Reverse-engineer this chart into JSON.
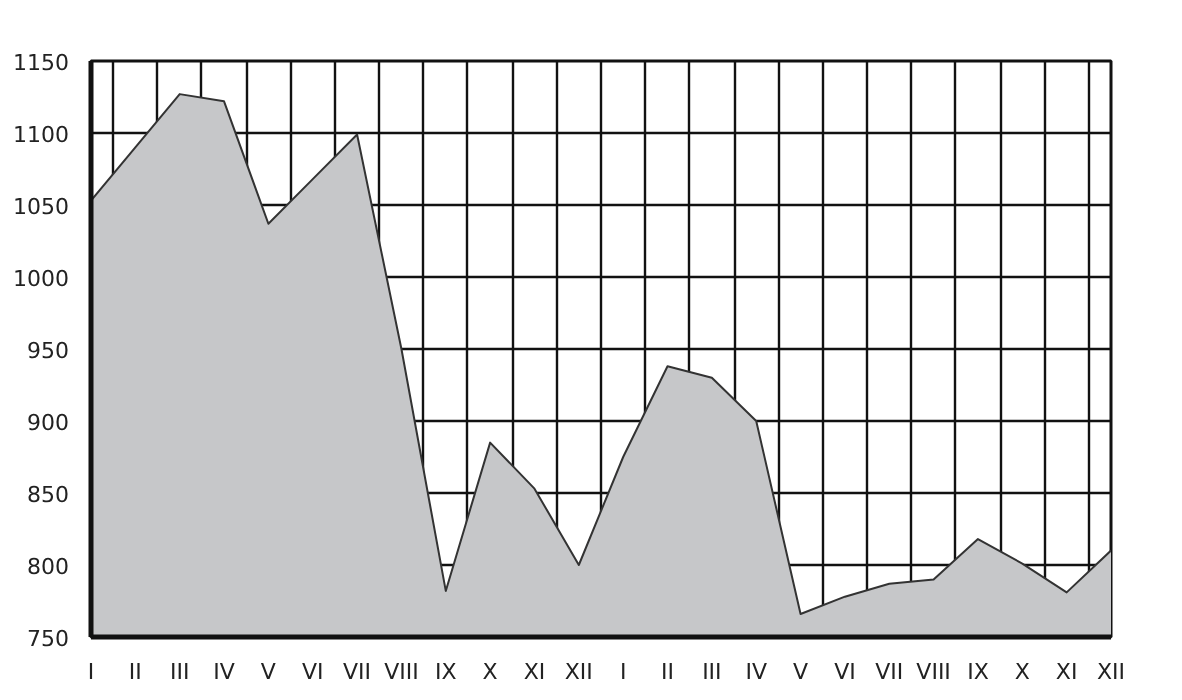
{
  "chart_data": {
    "type": "area",
    "categories": [
      "I",
      "II",
      "III",
      "IV",
      "V",
      "VI",
      "VII",
      "VIII",
      "IX",
      "X",
      "XI",
      "XII",
      "I",
      "II",
      "III",
      "IV",
      "V",
      "VI",
      "VII",
      "VIII",
      "IX",
      "X",
      "XI",
      "XII"
    ],
    "series": [
      {
        "color": "#c6c7c9",
        "values": [
          1053,
          1090,
          1127,
          1122,
          1037,
          1068,
          1099,
          950,
          782,
          885,
          853,
          800,
          875,
          938,
          930,
          900,
          766,
          778,
          787,
          790,
          818,
          801,
          781,
          810
        ]
      }
    ],
    "ylim": [
      750,
      1150
    ],
    "yticks": [
      750,
      800,
      850,
      900,
      950,
      1000,
      1050,
      1100,
      1150
    ],
    "grid": true
  }
}
